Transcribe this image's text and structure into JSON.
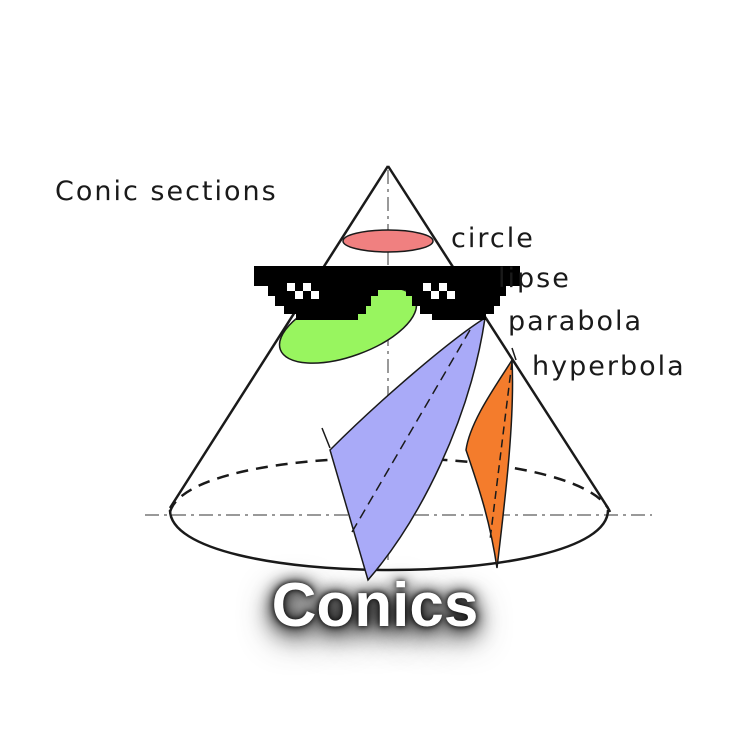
{
  "diagram": {
    "title": "Conic sections",
    "labels": {
      "circle": "circle",
      "ellipse": "lipse",
      "parabola": "parabola",
      "hyperbola": "hyperbola"
    },
    "colors": {
      "circle": "#f08080",
      "ellipse": "#98f55f",
      "parabola": "#a9aaf8",
      "hyperbola": "#f47c2c",
      "outline": "#1a1a1a",
      "axis": "#999999"
    }
  },
  "overlay": {
    "icon": "pixel-sunglasses-icon",
    "color": "#000000"
  },
  "caption": "Conics"
}
